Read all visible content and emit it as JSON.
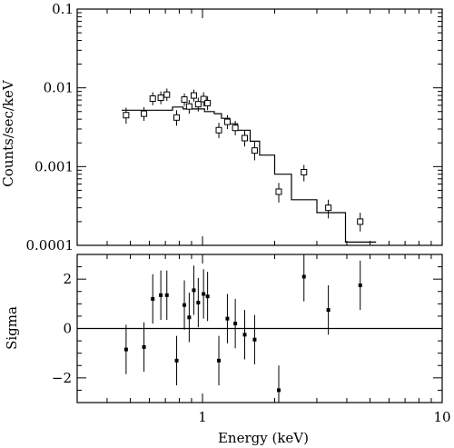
{
  "chart_data": [
    {
      "panel": "spectrum",
      "type": "scatter",
      "xscale": "log",
      "yscale": "log",
      "xlim": [
        0.3,
        10
      ],
      "ylim": [
        0.0001,
        0.1
      ],
      "ylabel": "Counts/sec/keV",
      "yticklabels": [
        {
          "value": 0.1,
          "label": "0.1"
        },
        {
          "value": 0.01,
          "label": "0.01"
        },
        {
          "value": 0.001,
          "label": "0.001"
        },
        {
          "value": 0.0001,
          "label": "0.0001"
        }
      ],
      "series": [
        {
          "kind": "data-with-errors",
          "points": [
            {
              "x": 0.48,
              "y": 0.0045,
              "ylo": 0.0035,
              "yhi": 0.0056
            },
            {
              "x": 0.57,
              "y": 0.0047,
              "ylo": 0.0038,
              "yhi": 0.0057
            },
            {
              "x": 0.62,
              "y": 0.0073,
              "ylo": 0.006,
              "yhi": 0.0088
            },
            {
              "x": 0.67,
              "y": 0.0075,
              "ylo": 0.0062,
              "yhi": 0.009
            },
            {
              "x": 0.71,
              "y": 0.0082,
              "ylo": 0.0068,
              "yhi": 0.0098
            },
            {
              "x": 0.78,
              "y": 0.0042,
              "ylo": 0.0033,
              "yhi": 0.0052
            },
            {
              "x": 0.84,
              "y": 0.0071,
              "ylo": 0.0059,
              "yhi": 0.0085
            },
            {
              "x": 0.88,
              "y": 0.0058,
              "ylo": 0.0047,
              "yhi": 0.007
            },
            {
              "x": 0.92,
              "y": 0.008,
              "ylo": 0.0067,
              "yhi": 0.0095
            },
            {
              "x": 0.96,
              "y": 0.0062,
              "ylo": 0.005,
              "yhi": 0.0075
            },
            {
              "x": 1.01,
              "y": 0.0072,
              "ylo": 0.0058,
              "yhi": 0.0088
            },
            {
              "x": 1.05,
              "y": 0.0064,
              "ylo": 0.0052,
              "yhi": 0.0078
            },
            {
              "x": 1.17,
              "y": 0.0029,
              "ylo": 0.0023,
              "yhi": 0.0036
            },
            {
              "x": 1.27,
              "y": 0.0037,
              "ylo": 0.003,
              "yhi": 0.0045
            },
            {
              "x": 1.37,
              "y": 0.0031,
              "ylo": 0.0025,
              "yhi": 0.0038
            },
            {
              "x": 1.5,
              "y": 0.0023,
              "ylo": 0.0018,
              "yhi": 0.0029
            },
            {
              "x": 1.65,
              "y": 0.0016,
              "ylo": 0.0012,
              "yhi": 0.0021
            },
            {
              "x": 2.08,
              "y": 0.00048,
              "ylo": 0.00035,
              "yhi": 0.00062
            },
            {
              "x": 2.65,
              "y": 0.00085,
              "ylo": 0.00065,
              "yhi": 0.00105
            },
            {
              "x": 3.35,
              "y": 0.0003,
              "ylo": 0.00022,
              "yhi": 0.00038
            },
            {
              "x": 4.55,
              "y": 0.0002,
              "ylo": 0.00015,
              "yhi": 0.00026
            }
          ]
        },
        {
          "kind": "model-step",
          "edges": [
            0.46,
            0.75,
            0.83,
            1.02,
            1.12,
            1.2,
            1.3,
            1.4,
            1.58,
            1.73,
            2.0,
            2.35,
            3.0,
            3.95,
            5.3
          ],
          "values": [
            0.0052,
            0.0057,
            0.0054,
            0.005,
            0.0047,
            0.0041,
            0.0035,
            0.0029,
            0.0021,
            0.0014,
            0.0008,
            0.00038,
            0.00026,
            0.00011
          ]
        }
      ]
    },
    {
      "panel": "residuals",
      "type": "scatter",
      "xscale": "log",
      "xlim": [
        0.3,
        10
      ],
      "ylim": [
        -3,
        3
      ],
      "xlabel": "Energy (keV)",
      "ylabel": "Sigma",
      "xticklabels": [
        {
          "value": 1,
          "label": "1"
        },
        {
          "value": 10,
          "label": "10"
        }
      ],
      "yticklabels": [
        {
          "value": 2,
          "label": "2"
        },
        {
          "value": 0,
          "label": "0"
        },
        {
          "value": -2,
          "label": "−2"
        }
      ],
      "reference_line": 0,
      "points": [
        {
          "x": 0.48,
          "y": -0.85,
          "ylo": -1.85,
          "yhi": 0.15
        },
        {
          "x": 0.57,
          "y": -0.75,
          "ylo": -1.75,
          "yhi": 0.25
        },
        {
          "x": 0.62,
          "y": 1.2,
          "ylo": 0.2,
          "yhi": 2.2
        },
        {
          "x": 0.67,
          "y": 1.35,
          "ylo": 0.35,
          "yhi": 2.35
        },
        {
          "x": 0.71,
          "y": 1.35,
          "ylo": 0.35,
          "yhi": 2.35
        },
        {
          "x": 0.78,
          "y": -1.3,
          "ylo": -2.3,
          "yhi": -0.3
        },
        {
          "x": 0.84,
          "y": 0.95,
          "ylo": -0.05,
          "yhi": 1.95
        },
        {
          "x": 0.88,
          "y": 0.45,
          "ylo": -0.55,
          "yhi": 1.45
        },
        {
          "x": 0.92,
          "y": 1.55,
          "ylo": 0.55,
          "yhi": 2.55
        },
        {
          "x": 0.96,
          "y": 1.05,
          "ylo": 0.05,
          "yhi": 2.05
        },
        {
          "x": 1.01,
          "y": 1.4,
          "ylo": 0.4,
          "yhi": 2.4
        },
        {
          "x": 1.05,
          "y": 1.3,
          "ylo": 0.3,
          "yhi": 2.3
        },
        {
          "x": 1.17,
          "y": -1.3,
          "ylo": -2.3,
          "yhi": -0.3
        },
        {
          "x": 1.27,
          "y": 0.4,
          "ylo": -0.6,
          "yhi": 1.4
        },
        {
          "x": 1.37,
          "y": 0.2,
          "ylo": -0.8,
          "yhi": 1.2
        },
        {
          "x": 1.5,
          "y": -0.25,
          "ylo": -1.25,
          "yhi": 0.75
        },
        {
          "x": 1.65,
          "y": -0.45,
          "ylo": -1.45,
          "yhi": 0.55
        },
        {
          "x": 2.08,
          "y": -2.5,
          "ylo": -3.5,
          "yhi": -1.5
        },
        {
          "x": 2.65,
          "y": 2.1,
          "ylo": 1.1,
          "yhi": 3.1
        },
        {
          "x": 3.35,
          "y": 0.75,
          "ylo": -0.25,
          "yhi": 1.75
        },
        {
          "x": 4.55,
          "y": 1.75,
          "ylo": 0.75,
          "yhi": 2.75
        }
      ]
    }
  ]
}
